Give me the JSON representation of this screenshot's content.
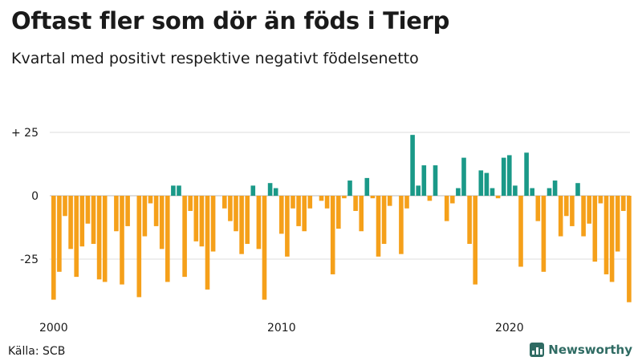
{
  "header": {
    "title": "Oftast fler som dör än föds i Tierp",
    "subtitle": "Kvartal med positivt respektive negativt födelsenetto"
  },
  "footer": {
    "source": "Källa: SCB",
    "brand": "Newsworthy"
  },
  "colors": {
    "positive": "#1a9988",
    "negative": "#f5a01a",
    "grid": "#dddddd",
    "zero_line": "#bbbbbb",
    "brand": "#2f6b63"
  },
  "chart_data": {
    "type": "bar",
    "title": "Oftast fler som dör än föds i Tierp",
    "subtitle": "Kvartal med positivt respektive negativt födelsenetto",
    "xlabel": "",
    "ylabel": "",
    "ylim": [
      -42,
      25
    ],
    "y_ticks": [
      {
        "value": 25,
        "label": "+ 25"
      },
      {
        "value": 0,
        "label": "0"
      },
      {
        "value": -25,
        "label": "-25"
      }
    ],
    "x_ticks": [
      {
        "label": "2000",
        "index": 0
      },
      {
        "label": "2010",
        "index": 40
      },
      {
        "label": "2020",
        "index": 80
      }
    ],
    "start_period": "2000 Q1",
    "grid": true,
    "values": [
      -41,
      -30,
      -8,
      -21,
      -32,
      -20,
      -11,
      -19,
      -33,
      -34,
      0,
      -14,
      -35,
      -12,
      0,
      -40,
      -16,
      -3,
      -12,
      -21,
      -34,
      4,
      4,
      -32,
      -6,
      -18,
      -20,
      -37,
      -22,
      0,
      -5,
      -10,
      -14,
      -23,
      -19,
      4,
      -21,
      -41,
      5,
      3,
      -15,
      -24,
      -5,
      -12,
      -14,
      -5,
      0,
      -2,
      -5,
      -31,
      -13,
      -1,
      6,
      -6,
      -14,
      7,
      -1,
      -24,
      -19,
      -4,
      0,
      -23,
      -5,
      24,
      4,
      12,
      -2,
      12,
      0,
      -10,
      -3,
      3,
      15,
      -19,
      -35,
      10,
      9,
      3,
      -1,
      15,
      16,
      4,
      -28,
      17,
      3,
      -10,
      -30,
      3,
      6,
      -16,
      -8,
      -12,
      5,
      -16,
      -11,
      -26,
      -3,
      -31,
      -34,
      -22,
      -6,
      -42
    ]
  }
}
